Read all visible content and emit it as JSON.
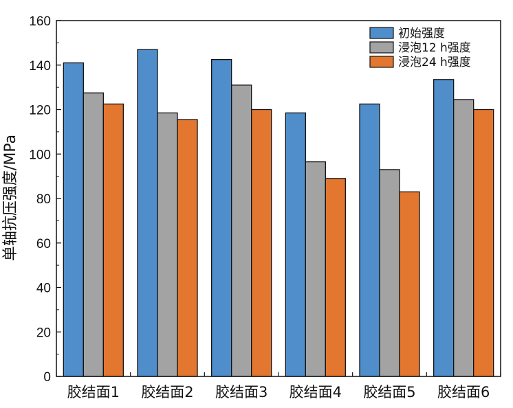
{
  "chart_data": {
    "type": "bar",
    "title": "",
    "xlabel": "",
    "ylabel": "单轴抗压强度/MPa",
    "ylim": [
      0,
      160
    ],
    "yticks": [
      0,
      20,
      40,
      60,
      80,
      100,
      120,
      140,
      160
    ],
    "categories": [
      "胶结面1",
      "胶结面2",
      "胶结面3",
      "胶结面4",
      "胶结面5",
      "胶结面6"
    ],
    "series": [
      {
        "name": "初始强度",
        "color": "#4f8ecb",
        "values": [
          141,
          147,
          142.5,
          118.5,
          122.5,
          133.5
        ]
      },
      {
        "name": "浸泡12 h强度",
        "color": "#a3a3a3",
        "values": [
          127.5,
          118.5,
          131,
          96.5,
          93,
          124.5
        ]
      },
      {
        "name": "浸泡24 h强度",
        "color": "#e4772f",
        "values": [
          122.5,
          115.5,
          120,
          89,
          83,
          120
        ]
      }
    ],
    "legend_position": "top-right",
    "grid": false
  }
}
